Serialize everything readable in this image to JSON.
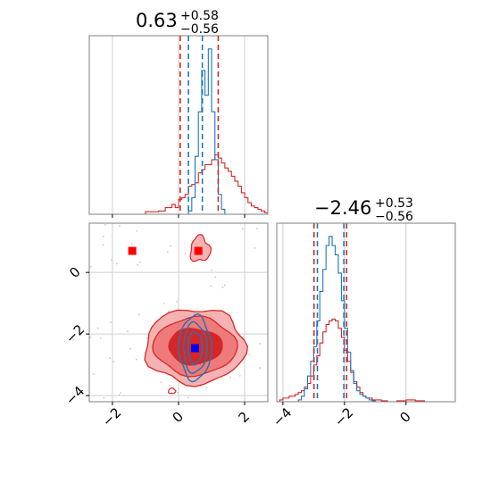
{
  "colors": {
    "red": "#d62728",
    "red_mid": "#ee7a7b",
    "red_light": "#f4b2b2",
    "blue": "#1f77b4",
    "marker_blue": "#0000ff",
    "marker_red": "#ff0000",
    "grid": "#cfcfcf",
    "frame": "#7f7f7f"
  },
  "chart_data": [
    {
      "type": "histogram",
      "panel": "top-left",
      "title": {
        "main": "0.63",
        "sup": "+0.58",
        "sub": "−0.56"
      },
      "xlim": [
        -2.7,
        2.7
      ],
      "x_ticks_shown_on_panel": "none",
      "bins_start": -2.0,
      "bins_width": 0.1,
      "red_series": [
        0,
        0,
        0,
        0,
        0,
        0,
        0,
        0,
        0,
        0,
        0.015,
        0.015,
        0.015,
        0.015,
        0.02,
        0.02,
        0.04,
        0.04,
        0.06,
        0.04,
        0.09,
        0.1,
        0.12,
        0.17,
        0.18,
        0.19,
        0.25,
        0.27,
        0.3,
        0.3,
        0.33,
        0.36,
        0.34,
        0.31,
        0.28,
        0.26,
        0.23,
        0.2,
        0.17,
        0.13,
        0.1,
        0.07,
        0.05,
        0.04,
        0.03,
        0.02,
        0.01,
        0.005,
        0,
        0
      ],
      "blue_series": [
        0,
        0,
        0,
        0,
        0,
        0,
        0,
        0,
        0,
        0,
        0,
        0,
        0,
        0,
        0,
        0,
        0,
        0,
        0,
        0,
        0,
        0,
        0,
        0.02,
        0.1,
        0.35,
        0.62,
        0.87,
        0.72,
        1.0,
        0.62,
        0.33,
        0.12,
        0.03,
        0,
        0,
        0,
        0,
        0,
        0,
        0,
        0,
        0,
        0,
        0,
        0,
        0,
        0,
        0,
        0
      ],
      "red_quantiles": [
        0.05,
        1.2
      ],
      "blue_quantiles": [
        0.3,
        0.72
      ]
    },
    {
      "type": "histogram",
      "panel": "bottom-right",
      "title": {
        "main": "−2.46",
        "sup": "+0.53",
        "sub": "−0.56"
      },
      "xlim": [
        -4.2,
        1.6
      ],
      "x_ticks": [
        -4,
        -2,
        0
      ],
      "x_tick_labels": [
        "−4",
        "−2",
        "0"
      ],
      "bins_start": -4.2,
      "bins_width": 0.1,
      "red_series": [
        0,
        0.01,
        0.02,
        0.02,
        0.03,
        0.03,
        0.04,
        0.05,
        0.06,
        0.08,
        0.1,
        0.14,
        0.2,
        0.25,
        0.32,
        0.38,
        0.42,
        0.44,
        0.45,
        0.44,
        0.4,
        0.35,
        0.28,
        0.22,
        0.16,
        0.11,
        0.08,
        0.05,
        0.03,
        0.02,
        0.02,
        0.01,
        0.01,
        0.01,
        0.005,
        0.005,
        0,
        0,
        0,
        0.005,
        0.005,
        0.005,
        0.01,
        0.01,
        0.01,
        0.005,
        0.005,
        0.005,
        0,
        0,
        0,
        0,
        0,
        0,
        0,
        0,
        0,
        0
      ],
      "blue_series": [
        0,
        0,
        0,
        0,
        0,
        0,
        0,
        0.01,
        0.03,
        0.07,
        0.14,
        0.22,
        0.3,
        0.44,
        0.6,
        0.72,
        0.85,
        0.9,
        0.85,
        0.8,
        0.7,
        0.55,
        0.4,
        0.27,
        0.17,
        0.1,
        0.06,
        0.04,
        0.03,
        0.02,
        0.01,
        0.005,
        0,
        0,
        0,
        0,
        0,
        0,
        0,
        0,
        0,
        0,
        0,
        0,
        0,
        0,
        0,
        0,
        0,
        0,
        0,
        0,
        0,
        0,
        0,
        0,
        0,
        0
      ],
      "red_quantiles": [
        -2.99,
        -1.93
      ],
      "blue_quantiles": [
        -2.88,
        -2.02
      ]
    },
    {
      "type": "contour",
      "panel": "bottom-left",
      "xlim": [
        -2.7,
        2.7
      ],
      "ylim": [
        -4.2,
        1.6
      ],
      "x_ticks": [
        -2,
        0,
        2
      ],
      "x_tick_labels": [
        "−2",
        "0",
        "2"
      ],
      "y_ticks": [
        -4,
        -2,
        0
      ],
      "y_tick_labels": [
        "−4",
        "−2",
        "0"
      ],
      "red_center": [
        0.5,
        -2.4
      ],
      "blue_center": [
        0.5,
        -2.45
      ],
      "markers": {
        "red_squares": [
          [
            -1.4,
            0.7
          ],
          [
            0.6,
            0.7
          ]
        ],
        "blue_square": [
          0.5,
          -2.46
        ]
      }
    }
  ]
}
